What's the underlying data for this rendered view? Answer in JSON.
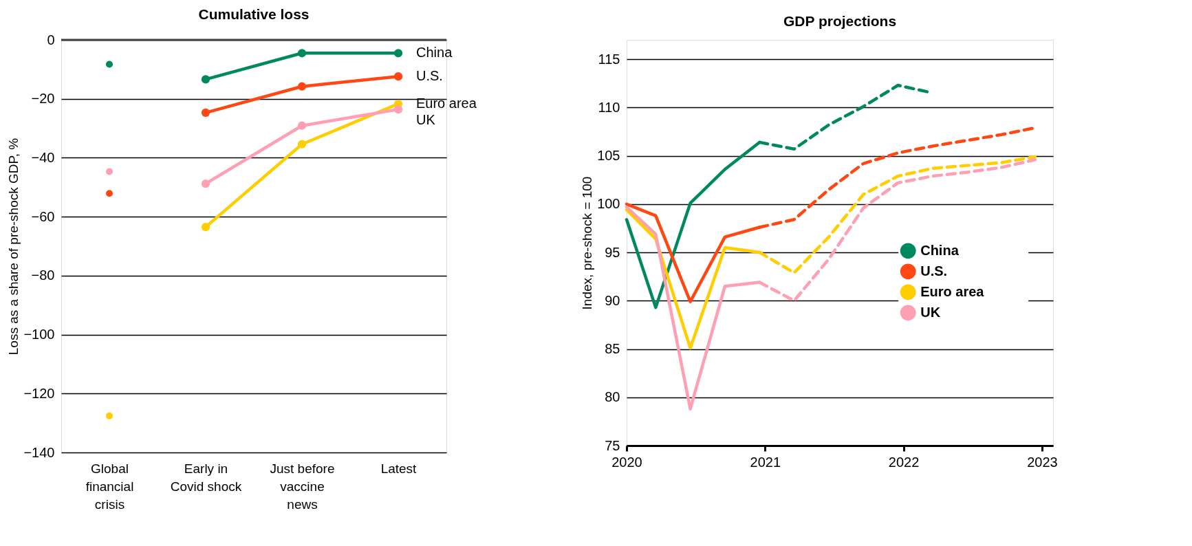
{
  "chart_data": [
    {
      "type": "line",
      "title": "Cumulative loss",
      "ylabel": "Loss as a share of pre-shock GDP, %",
      "categories": [
        "Global financial crisis",
        "Early in Covid shock",
        "Just before vaccine news",
        "Latest"
      ],
      "ylim": [
        -140,
        0
      ],
      "yticks": [
        -140,
        -120,
        -100,
        -80,
        -60,
        -40,
        -20,
        0
      ],
      "grid": "y",
      "marker": "circle",
      "legend": false,
      "ref_lines": [
        {
          "axis": "y",
          "value": 0,
          "color": "#404040"
        }
      ],
      "series": [
        {
          "name": "China",
          "color": "#00895e",
          "values": [
            null,
            -13.4,
            -4.5,
            -4.5
          ]
        },
        {
          "name": "U.S.",
          "color": "#ff4713",
          "values": [
            null,
            -24.7,
            -15.8,
            -12.4
          ]
        },
        {
          "name": "Euro area",
          "color": "#ffce00",
          "values": [
            null,
            -63.5,
            -35.4,
            -21.7
          ]
        },
        {
          "name": "UK",
          "color": "#ff9fb4",
          "values": [
            null,
            -48.8,
            -29.1,
            -23.6
          ]
        },
        {
          "type": "scatter",
          "color": "#00895e",
          "values": [
            -8.3,
            null,
            null,
            null
          ]
        },
        {
          "type": "scatter",
          "color": "#ff4713",
          "values": [
            -52.1,
            null,
            null,
            null
          ]
        },
        {
          "type": "scatter",
          "color": "#ffce00",
          "values": [
            -127.6,
            null,
            null,
            null
          ]
        },
        {
          "type": "scatter",
          "color": "#ff9fb4",
          "values": [
            -44.7,
            null,
            null,
            null
          ]
        }
      ]
    },
    {
      "type": "line",
      "title": "GDP projections",
      "ylabel": "Index, pre-shock = 100",
      "xlim": [
        2020,
        2023.08
      ],
      "xticks": [
        2020,
        2021,
        2022,
        2023
      ],
      "ylim": [
        75,
        117
      ],
      "yticks": [
        75,
        80,
        85,
        90,
        95,
        100,
        105,
        110,
        115
      ],
      "grid": "y",
      "legend": "right",
      "marker": "none",
      "series": [
        {
          "name": "China",
          "color": "#00895e",
          "line_style": "solid",
          "x": [
            2020.0,
            2020.21,
            2020.46,
            2020.71,
            2020.96
          ],
          "values": [
            98.4,
            89.3,
            100.1,
            103.6,
            106.4
          ]
        },
        {
          "name": "U.S.",
          "color": "#ff4713",
          "line_style": "solid",
          "x": [
            2020.0,
            2020.21,
            2020.46,
            2020.71,
            2020.96
          ],
          "values": [
            100.0,
            98.8,
            89.9,
            96.6,
            97.6
          ]
        },
        {
          "name": "Euro area",
          "color": "#ffce00",
          "line_style": "solid",
          "x": [
            2020.0,
            2020.21,
            2020.46,
            2020.71,
            2020.96
          ],
          "values": [
            99.4,
            96.4,
            85.1,
            95.5,
            95.0
          ]
        },
        {
          "name": "UK",
          "color": "#ff9fb4",
          "line_style": "solid",
          "x": [
            2020.0,
            2020.21,
            2020.46,
            2020.71,
            2020.96
          ],
          "values": [
            99.7,
            96.9,
            78.8,
            91.5,
            91.9
          ]
        },
        {
          "color": "#00895e",
          "line_style": "dashed",
          "x": [
            2020.96,
            2021.21,
            2021.46,
            2021.71,
            2021.96,
            2022.18
          ],
          "values": [
            106.4,
            105.7,
            108.2,
            110.1,
            112.3,
            111.6
          ]
        },
        {
          "color": "#ff4713",
          "line_style": "dashed",
          "x": [
            2020.96,
            2021.21,
            2021.46,
            2021.71,
            2021.96,
            2022.21,
            2022.46,
            2022.71,
            2022.95
          ],
          "values": [
            97.6,
            98.4,
            101.5,
            104.2,
            105.3,
            106.0,
            106.6,
            107.2,
            107.9
          ]
        },
        {
          "color": "#ffce00",
          "line_style": "dashed",
          "x": [
            2020.96,
            2021.21,
            2021.46,
            2021.71,
            2021.96,
            2022.21,
            2022.46,
            2022.71,
            2022.95
          ],
          "values": [
            95.0,
            92.9,
            96.6,
            101.0,
            102.9,
            103.7,
            104.0,
            104.3,
            104.9
          ]
        },
        {
          "color": "#ff9fb4",
          "line_style": "dashed",
          "x": [
            2020.96,
            2021.21,
            2021.46,
            2021.71,
            2021.96,
            2022.21,
            2022.46,
            2022.71,
            2022.95
          ],
          "values": [
            91.9,
            90.0,
            94.3,
            99.6,
            102.2,
            102.9,
            103.3,
            103.8,
            104.6
          ]
        }
      ]
    }
  ]
}
